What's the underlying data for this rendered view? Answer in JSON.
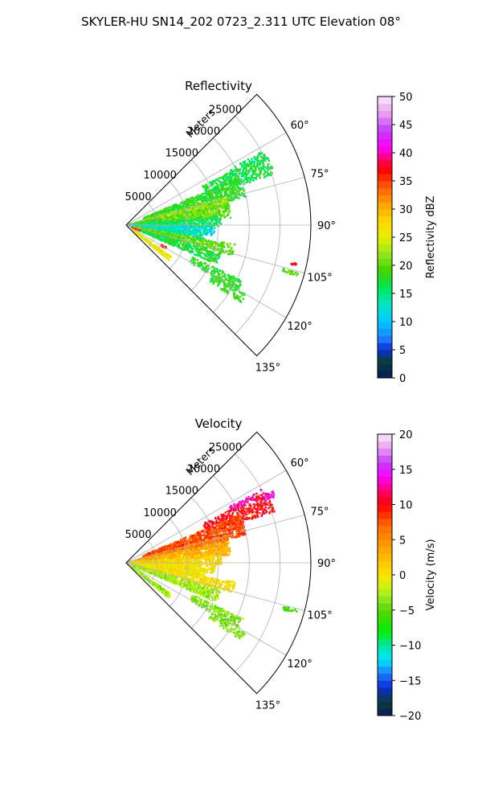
{
  "figure": {
    "suptitle": "SKYLER-HU  SN14_202  0723_2.311 UTC Elevation 08°"
  },
  "chart_data": [
    {
      "type": "heatmap",
      "projection": "polar-sector",
      "title": "Reflectivity",
      "radial_label": "Meters",
      "radial_ticks": [
        5000,
        10000,
        15000,
        20000,
        25000
      ],
      "radial_tick_labels": [
        "5000",
        "10000",
        "15000",
        "20000",
        "25000"
      ],
      "rmax": 30000,
      "theta_range": [
        45,
        135
      ],
      "theta_ticks": [
        60,
        75,
        90,
        105,
        120,
        135
      ],
      "theta_tick_labels": [
        "60°",
        "75°",
        "90°",
        "105°",
        "120°",
        "135°"
      ],
      "grid": true,
      "colorbar": {
        "label": "Reflectivity dBZ",
        "min": 0,
        "max": 50,
        "ticks": [
          0,
          5,
          10,
          15,
          20,
          25,
          30,
          35,
          40,
          45,
          50
        ],
        "tick_labels": [
          "0",
          "5",
          "10",
          "15",
          "20",
          "25",
          "30",
          "35",
          "40",
          "45",
          "50"
        ],
        "stops": [
          {
            "v": 0,
            "c": "#081a5a"
          },
          {
            "v": 3,
            "c": "#0a3d3a"
          },
          {
            "v": 5,
            "c": "#0a2bd6"
          },
          {
            "v": 7,
            "c": "#1e7cff"
          },
          {
            "v": 10,
            "c": "#00c8ff"
          },
          {
            "v": 13,
            "c": "#00e6c8"
          },
          {
            "v": 16,
            "c": "#00e85a"
          },
          {
            "v": 19,
            "c": "#3ed400"
          },
          {
            "v": 22,
            "c": "#8fe61a"
          },
          {
            "v": 25,
            "c": "#e8f000"
          },
          {
            "v": 28,
            "c": "#ffd400"
          },
          {
            "v": 31,
            "c": "#ffa000"
          },
          {
            "v": 34,
            "c": "#ff5a00"
          },
          {
            "v": 37,
            "c": "#ff0000"
          },
          {
            "v": 39,
            "c": "#ff0070"
          },
          {
            "v": 41,
            "c": "#ff00ff"
          },
          {
            "v": 44,
            "c": "#c23cff"
          },
          {
            "v": 47,
            "c": "#e89ef0"
          },
          {
            "v": 50,
            "c": "#fbe8fb"
          }
        ]
      },
      "cells": [
        {
          "theta": 63,
          "r": [
            19000,
            25000
          ],
          "spread": 1.5,
          "value": 16,
          "density": 0.45
        },
        {
          "theta": 67,
          "r": [
            14000,
            25500
          ],
          "spread": 4.0,
          "value": 17,
          "density": 0.5
        },
        {
          "theta": 72,
          "r": [
            3000,
            20000
          ],
          "spread": 5.0,
          "value": 18,
          "density": 0.55
        },
        {
          "theta": 77,
          "r": [
            1500,
            17000
          ],
          "spread": 3.0,
          "value": 22,
          "density": 0.6
        },
        {
          "theta": 82,
          "r": [
            500,
            17000
          ],
          "spread": 4.0,
          "value": 20,
          "density": 0.6
        },
        {
          "theta": 88,
          "r": [
            500,
            15500
          ],
          "spread": 3.0,
          "value": 16,
          "density": 0.55
        },
        {
          "theta": 94,
          "r": [
            500,
            14500
          ],
          "spread": 3.0,
          "value": 12,
          "density": 0.55
        },
        {
          "theta": 98,
          "r": [
            2000,
            13000
          ],
          "spread": 3.0,
          "value": 14,
          "density": 0.5
        },
        {
          "theta": 103,
          "r": [
            1000,
            18000
          ],
          "spread": 3.0,
          "value": 20,
          "density": 0.55
        },
        {
          "theta": 110,
          "r": [
            1000,
            16000
          ],
          "spread": 3.5,
          "value": 17,
          "density": 0.55
        },
        {
          "theta": 118,
          "r": [
            12000,
            21000
          ],
          "spread": 2.5,
          "value": 18,
          "density": 0.5
        },
        {
          "theta": 122,
          "r": [
            16000,
            22500
          ],
          "spread": 2.0,
          "value": 18,
          "density": 0.45
        },
        {
          "theta": 127,
          "r": [
            1000,
            9000
          ],
          "spread": 2.5,
          "value": 26,
          "density": 0.55
        },
        {
          "theta": 106,
          "r": [
            26500,
            29000
          ],
          "spread": 0.6,
          "value": 20,
          "density": 0.7
        },
        {
          "theta": 103,
          "r": [
            27500,
            28500
          ],
          "spread": 0.4,
          "value": 38,
          "density": 0.8
        },
        {
          "theta": 120,
          "r": [
            6500,
            7500
          ],
          "spread": 1.2,
          "value": 37,
          "density": 0.8
        },
        {
          "theta": 110,
          "r": [
            1000,
            2500
          ],
          "spread": 1.0,
          "value": 36,
          "density": 0.6
        }
      ]
    },
    {
      "type": "heatmap",
      "projection": "polar-sector",
      "title": "Velocity",
      "radial_label": "Meters",
      "radial_ticks": [
        5000,
        10000,
        15000,
        20000,
        25000
      ],
      "radial_tick_labels": [
        "5000",
        "10000",
        "15000",
        "20000",
        "25000"
      ],
      "rmax": 30000,
      "theta_range": [
        45,
        135
      ],
      "theta_ticks": [
        60,
        75,
        90,
        105,
        120,
        135
      ],
      "theta_tick_labels": [
        "60°",
        "75°",
        "90°",
        "105°",
        "120°",
        "135°"
      ],
      "grid": true,
      "colorbar": {
        "label": "Velocity (m/s)",
        "min": -20,
        "max": 20,
        "ticks": [
          -20,
          -15,
          -10,
          -5,
          0,
          5,
          10,
          15,
          20
        ],
        "tick_labels": [
          "−20",
          "−15",
          "−10",
          "−5",
          "0",
          "5",
          "10",
          "15",
          "20"
        ],
        "stops": [
          {
            "v": -20,
            "c": "#081a5a"
          },
          {
            "v": -18,
            "c": "#0a3d3a"
          },
          {
            "v": -16,
            "c": "#0a2bd6"
          },
          {
            "v": -14,
            "c": "#1e7cff"
          },
          {
            "v": -12,
            "c": "#00e6ff"
          },
          {
            "v": -10,
            "c": "#00e6a0"
          },
          {
            "v": -8,
            "c": "#00f000"
          },
          {
            "v": -5,
            "c": "#5ad400"
          },
          {
            "v": -3,
            "c": "#9aee2a"
          },
          {
            "v": -1,
            "c": "#e8f000"
          },
          {
            "v": 1,
            "c": "#ffd400"
          },
          {
            "v": 4,
            "c": "#ffa000"
          },
          {
            "v": 7,
            "c": "#ff6a00"
          },
          {
            "v": 10,
            "c": "#ff0000"
          },
          {
            "v": 12,
            "c": "#ff0070"
          },
          {
            "v": 14,
            "c": "#ff00ff"
          },
          {
            "v": 16,
            "c": "#c23cff"
          },
          {
            "v": 18,
            "c": "#e89ef0"
          },
          {
            "v": 20,
            "c": "#fbe8fb"
          }
        ]
      },
      "cells": [
        {
          "theta": 63,
          "r": [
            19000,
            25000
          ],
          "spread": 1.5,
          "value": 13,
          "density": 0.5
        },
        {
          "theta": 67,
          "r": [
            14000,
            25500
          ],
          "spread": 4.0,
          "value": 10,
          "density": 0.55
        },
        {
          "theta": 72,
          "r": [
            3000,
            20000
          ],
          "spread": 5.0,
          "value": 8,
          "density": 0.65
        },
        {
          "theta": 77,
          "r": [
            1500,
            17000
          ],
          "spread": 3.0,
          "value": 6,
          "density": 0.65
        },
        {
          "theta": 82,
          "r": [
            500,
            17000
          ],
          "spread": 4.0,
          "value": 3,
          "density": 0.65
        },
        {
          "theta": 88,
          "r": [
            500,
            15500
          ],
          "spread": 3.0,
          "value": 1,
          "density": 0.6
        },
        {
          "theta": 94,
          "r": [
            500,
            14500
          ],
          "spread": 3.0,
          "value": 0,
          "density": 0.6
        },
        {
          "theta": 98,
          "r": [
            2000,
            13000
          ],
          "spread": 3.0,
          "value": 0,
          "density": 0.55
        },
        {
          "theta": 103,
          "r": [
            1000,
            18000
          ],
          "spread": 3.0,
          "value": 0,
          "density": 0.6
        },
        {
          "theta": 110,
          "r": [
            1000,
            16000
          ],
          "spread": 3.5,
          "value": -3,
          "density": 0.6
        },
        {
          "theta": 118,
          "r": [
            12000,
            21000
          ],
          "spread": 2.5,
          "value": -4,
          "density": 0.55
        },
        {
          "theta": 122,
          "r": [
            16000,
            22500
          ],
          "spread": 2.0,
          "value": -4,
          "density": 0.5
        },
        {
          "theta": 127,
          "r": [
            1000,
            9000
          ],
          "spread": 2.5,
          "value": -3,
          "density": 0.6
        },
        {
          "theta": 106,
          "r": [
            26500,
            29000
          ],
          "spread": 0.6,
          "value": -6,
          "density": 0.7
        },
        {
          "theta": 65,
          "r": [
            24500,
            26500
          ],
          "spread": 1.2,
          "value": 14,
          "density": 0.7
        }
      ]
    }
  ]
}
